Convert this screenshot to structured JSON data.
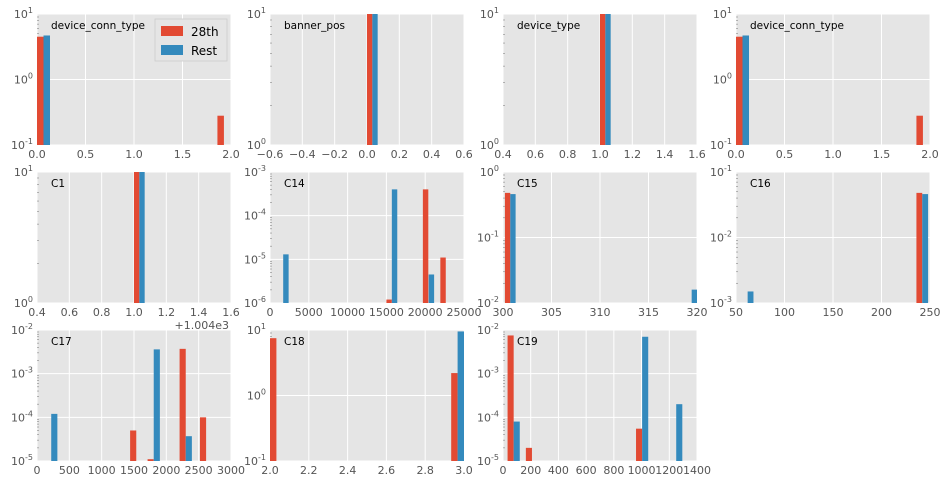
{
  "colors": {
    "a": "#E24A33",
    "b": "#348ABD",
    "bg": "#E5E5E5",
    "grid": "#FFFFFF"
  },
  "legend": {
    "label_a": "28th",
    "label_b": "Rest",
    "location": "top-right of first panel"
  },
  "chart_data": [
    {
      "title": "device_conn_type",
      "type": "bar",
      "xlim": [
        0,
        2
      ],
      "xticks": [
        "0.0",
        "0.5",
        "1.0",
        "1.5",
        "2.0"
      ],
      "yscale": "log",
      "ylim": [
        0.1,
        10
      ],
      "yticks": [
        {
          "v": 0.1,
          "base": "10",
          "exp": "-1"
        },
        {
          "v": 1,
          "base": "10",
          "exp": "0"
        },
        {
          "v": 10,
          "base": "10",
          "exp": "1"
        }
      ],
      "bin_width": 0.067,
      "series": [
        {
          "name": "28th",
          "x": [
            0.0,
            1.86
          ],
          "values": [
            4.5,
            0.28
          ]
        },
        {
          "name": "Rest",
          "x": [
            0.067
          ],
          "values": [
            4.7
          ]
        }
      ],
      "show_legend": true
    },
    {
      "title": "banner_pos",
      "type": "bar",
      "xlim": [
        -0.6,
        0.6
      ],
      "xticks": [
        "−0.6",
        "−0.4",
        "−0.2",
        "0.0",
        "0.2",
        "0.4",
        "0.6"
      ],
      "yscale": "log",
      "ylim": [
        1,
        10
      ],
      "yticks": [
        {
          "v": 1,
          "base": "10",
          "exp": "0"
        },
        {
          "v": 10,
          "base": "10",
          "exp": "1"
        }
      ],
      "bin_width": 0.033,
      "series": [
        {
          "name": "28th",
          "x": [
            0.0
          ],
          "values": [
            10
          ]
        },
        {
          "name": "Rest",
          "x": [
            0.033
          ],
          "values": [
            10
          ]
        }
      ]
    },
    {
      "title": "device_type",
      "type": "bar",
      "xlim": [
        0.4,
        1.6
      ],
      "xticks": [
        "0.4",
        "0.6",
        "0.8",
        "1.0",
        "1.2",
        "1.4",
        "1.6"
      ],
      "yscale": "log",
      "ylim": [
        1,
        10
      ],
      "yticks": [
        {
          "v": 1,
          "base": "10",
          "exp": "0"
        },
        {
          "v": 10,
          "base": "10",
          "exp": "1"
        }
      ],
      "bin_width": 0.033,
      "series": [
        {
          "name": "28th",
          "x": [
            1.0
          ],
          "values": [
            10
          ]
        },
        {
          "name": "Rest",
          "x": [
            1.033
          ],
          "values": [
            10
          ]
        }
      ]
    },
    {
      "title": "device_conn_type",
      "type": "bar",
      "xlim": [
        0,
        2
      ],
      "xticks": [
        "0.0",
        "0.5",
        "1.0",
        "1.5",
        "2.0"
      ],
      "yscale": "log",
      "ylim": [
        0.1,
        10
      ],
      "yticks": [
        {
          "v": 0.1,
          "base": "10",
          "exp": "-1"
        },
        {
          "v": 1,
          "base": "10",
          "exp": "0"
        },
        {
          "v": 10,
          "base": "10",
          "exp": "1"
        }
      ],
      "bin_width": 0.067,
      "series": [
        {
          "name": "28th",
          "x": [
            0.0,
            1.86
          ],
          "values": [
            4.5,
            0.28
          ]
        },
        {
          "name": "Rest",
          "x": [
            0.067
          ],
          "values": [
            4.7
          ]
        }
      ]
    },
    {
      "title": "C1",
      "type": "bar",
      "xlim": [
        0.4,
        1.6
      ],
      "xticks": [
        "0.4",
        "0.6",
        "0.8",
        "1.0",
        "1.2",
        "1.4",
        "1.6"
      ],
      "offset_label": "+1.004e3",
      "yscale": "log",
      "ylim": [
        1,
        10
      ],
      "yticks": [
        {
          "v": 1,
          "base": "10",
          "exp": "0"
        },
        {
          "v": 10,
          "base": "10",
          "exp": "1"
        }
      ],
      "bin_width": 0.033,
      "series": [
        {
          "name": "28th",
          "x": [
            1.0
          ],
          "values": [
            10
          ]
        },
        {
          "name": "Rest",
          "x": [
            1.033
          ],
          "values": [
            10
          ]
        }
      ]
    },
    {
      "title": "C14",
      "type": "bar",
      "xlim": [
        0,
        25000
      ],
      "xticks": [
        "0",
        "5000",
        "10000",
        "15000",
        "20000",
        "25000"
      ],
      "yscale": "log",
      "ylim": [
        1e-06,
        0.001
      ],
      "yticks": [
        {
          "v": 1e-06,
          "base": "10",
          "exp": "-6"
        },
        {
          "v": 1e-05,
          "base": "10",
          "exp": "-5"
        },
        {
          "v": 0.0001,
          "base": "10",
          "exp": "-4"
        },
        {
          "v": 0.001,
          "base": "10",
          "exp": "-3"
        }
      ],
      "bin_width": 700,
      "series": [
        {
          "name": "28th",
          "x": [
            15000,
            19700,
            21950
          ],
          "values": [
            1.2e-06,
            0.0004,
            1.1e-05
          ]
        },
        {
          "name": "Rest",
          "x": [
            1700,
            15700,
            20450
          ],
          "values": [
            1.3e-05,
            0.0004,
            4.5e-06
          ]
        }
      ]
    },
    {
      "title": "C15",
      "type": "bar",
      "xlim": [
        300,
        320
      ],
      "xticks": [
        "300",
        "305",
        "310",
        "315",
        "320"
      ],
      "yscale": "log",
      "ylim": [
        0.01,
        1
      ],
      "yticks": [
        {
          "v": 0.01,
          "base": "10",
          "exp": "-2"
        },
        {
          "v": 0.1,
          "base": "10",
          "exp": "-1"
        },
        {
          "v": 1,
          "base": "10",
          "exp": "0"
        }
      ],
      "bin_width": 0.55,
      "series": [
        {
          "name": "28th",
          "x": [
            300.2
          ],
          "values": [
            0.48
          ]
        },
        {
          "name": "Rest",
          "x": [
            300.75,
            319.45
          ],
          "values": [
            0.46,
            0.016
          ]
        }
      ]
    },
    {
      "title": "C16",
      "type": "bar",
      "xlim": [
        50,
        250
      ],
      "xticks": [
        "50",
        "100",
        "150",
        "200",
        "250"
      ],
      "yscale": "log",
      "ylim": [
        0.001,
        0.1
      ],
      "yticks": [
        {
          "v": 0.001,
          "base": "10",
          "exp": "-3"
        },
        {
          "v": 0.01,
          "base": "10",
          "exp": "-2"
        },
        {
          "v": 0.1,
          "base": "10",
          "exp": "-1"
        }
      ],
      "bin_width": 6,
      "series": [
        {
          "name": "28th",
          "x": [
            236
          ],
          "values": [
            0.048
          ]
        },
        {
          "name": "Rest",
          "x": [
            62,
            242
          ],
          "values": [
            0.0015,
            0.046
          ]
        }
      ]
    },
    {
      "title": "C17",
      "type": "bar",
      "xlim": [
        0,
        3000
      ],
      "xticks": [
        "0",
        "500",
        "1000",
        "1500",
        "2000",
        "2500",
        "3000"
      ],
      "yscale": "log",
      "ylim": [
        1e-05,
        0.01
      ],
      "yticks": [
        {
          "v": 1e-05,
          "base": "10",
          "exp": "-5"
        },
        {
          "v": 0.0001,
          "base": "10",
          "exp": "-4"
        },
        {
          "v": 0.001,
          "base": "10",
          "exp": "-3"
        },
        {
          "v": 0.01,
          "base": "10",
          "exp": "-2"
        }
      ],
      "bin_width": 95,
      "series": [
        {
          "name": "28th",
          "x": [
            1440,
            1710,
            2205,
            2520
          ],
          "values": [
            5e-05,
            1.1e-05,
            0.0037,
            0.0001
          ]
        },
        {
          "name": "Rest",
          "x": [
            220,
            1805,
            2300
          ],
          "values": [
            0.00012,
            0.0036,
            3.7e-05
          ]
        }
      ]
    },
    {
      "title": "C18",
      "type": "bar",
      "xlim": [
        2,
        3
      ],
      "xticks": [
        "2.0",
        "2.2",
        "2.4",
        "2.6",
        "2.8",
        "3.0"
      ],
      "yscale": "log",
      "ylim": [
        0.1,
        10
      ],
      "yticks": [
        {
          "v": 0.1,
          "base": "10",
          "exp": "-1"
        },
        {
          "v": 1,
          "base": "10",
          "exp": "0"
        },
        {
          "v": 10,
          "base": "10",
          "exp": "1"
        }
      ],
      "bin_width": 0.033,
      "series": [
        {
          "name": "28th",
          "x": [
            2.0,
            2.934
          ],
          "values": [
            7.5,
            2.2
          ]
        },
        {
          "name": "Rest",
          "x": [
            2.033,
            2.967
          ],
          "values": [
            0.1,
            9.5
          ]
        }
      ]
    },
    {
      "title": "C19",
      "type": "bar",
      "xlim": [
        0,
        1400
      ],
      "xticks": [
        "0",
        "200",
        "400",
        "600",
        "800",
        "1000",
        "1200",
        "1400"
      ],
      "yscale": "log",
      "ylim": [
        1e-05,
        0.01
      ],
      "yticks": [
        {
          "v": 1e-05,
          "base": "10",
          "exp": "-5"
        },
        {
          "v": 0.0001,
          "base": "10",
          "exp": "-4"
        },
        {
          "v": 0.001,
          "base": "10",
          "exp": "-3"
        },
        {
          "v": 0.01,
          "base": "10",
          "exp": "-2"
        }
      ],
      "bin_width": 44,
      "series": [
        {
          "name": "28th",
          "x": [
            33,
            165,
            960
          ],
          "values": [
            0.0075,
            2e-05,
            5.5e-05
          ]
        },
        {
          "name": "Rest",
          "x": [
            77,
            1004,
            1250
          ],
          "values": [
            8e-05,
            0.007,
            0.0002
          ]
        }
      ]
    }
  ]
}
